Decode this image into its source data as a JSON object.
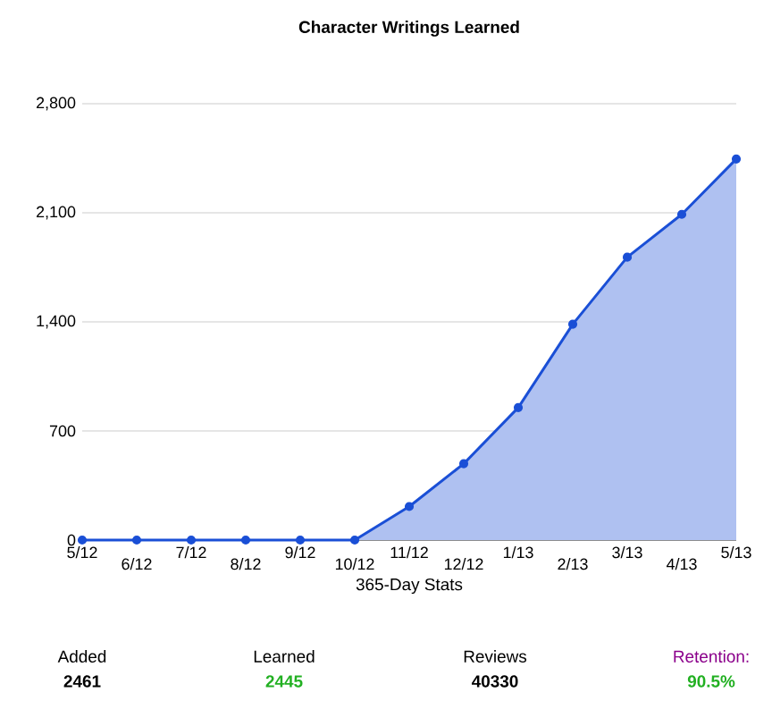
{
  "chart_data": {
    "type": "area",
    "title": "Character Writings Learned",
    "xlabel": "365-Day Stats",
    "categories": [
      "5/12",
      "6/12",
      "7/12",
      "8/12",
      "9/12",
      "10/12",
      "11/12",
      "12/12",
      "1/13",
      "2/13",
      "3/13",
      "4/13",
      "5/13"
    ],
    "series": [
      {
        "color": "#1a4fd6",
        "values": [
          0,
          0,
          0,
          0,
          0,
          0,
          215,
          490,
          850,
          1385,
          1815,
          2090,
          2445
        ]
      }
    ],
    "ylim": [
      0,
      2800
    ],
    "yticks": [
      {
        "value": 0,
        "label": "0"
      },
      {
        "value": 700,
        "label": "700"
      },
      {
        "value": 1400,
        "label": "1,400"
      },
      {
        "value": 2100,
        "label": "2,100"
      },
      {
        "value": 2800,
        "label": "2,800"
      }
    ],
    "grid": "y",
    "marker": "circle",
    "annotations": [
      "Added",
      "2461",
      "Learned",
      "2445",
      "Reviews",
      "40330",
      "Retention:",
      "90.5%"
    ]
  }
}
